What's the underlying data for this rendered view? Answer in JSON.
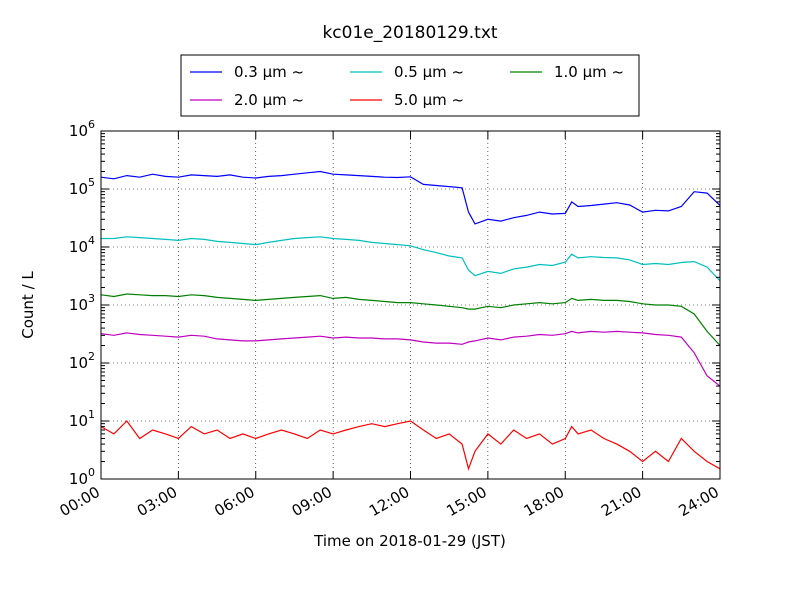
{
  "chart_data": {
    "type": "line",
    "title": "kc01e_20180129.txt",
    "xlabel": "Time on 2018-01-29 (JST)",
    "ylabel": "Count / L",
    "y_scale": "log",
    "ylim": [
      1,
      1000000
    ],
    "xlim": [
      "00:00",
      "24:00"
    ],
    "grid": true,
    "legend_position": "top-center",
    "x_ticks": [
      "00:00",
      "03:00",
      "06:00",
      "09:00",
      "12:00",
      "15:00",
      "18:00",
      "21:00",
      "24:00"
    ],
    "y_ticks": [
      {
        "base": "10",
        "exp": "0"
      },
      {
        "base": "10",
        "exp": "1"
      },
      {
        "base": "10",
        "exp": "2"
      },
      {
        "base": "10",
        "exp": "3"
      },
      {
        "base": "10",
        "exp": "4"
      },
      {
        "base": "10",
        "exp": "5"
      },
      {
        "base": "10",
        "exp": "6"
      }
    ],
    "x_hours": [
      0.0,
      0.5,
      1.0,
      1.5,
      2.0,
      2.5,
      3.0,
      3.5,
      4.0,
      4.5,
      5.0,
      5.5,
      6.0,
      6.5,
      7.0,
      7.5,
      8.0,
      8.5,
      9.0,
      9.5,
      10.0,
      10.5,
      11.0,
      11.5,
      12.0,
      12.5,
      13.0,
      13.5,
      14.0,
      14.25,
      14.5,
      15.0,
      15.5,
      16.0,
      16.5,
      17.0,
      17.5,
      18.0,
      18.25,
      18.5,
      19.0,
      19.5,
      20.0,
      20.5,
      21.0,
      21.5,
      22.0,
      22.5,
      23.0,
      23.5,
      24.0
    ],
    "series": [
      {
        "name": "0.3 μm ~",
        "color": "#0000ff",
        "values": [
          160000,
          150000,
          170000,
          160000,
          180000,
          165000,
          160000,
          175000,
          170000,
          165000,
          175000,
          160000,
          155000,
          165000,
          170000,
          180000,
          190000,
          200000,
          180000,
          175000,
          170000,
          165000,
          160000,
          158000,
          162000,
          120000,
          115000,
          110000,
          105000,
          40000,
          25000,
          30000,
          28000,
          32000,
          35000,
          40000,
          37000,
          38000,
          60000,
          50000,
          52000,
          55000,
          58000,
          53000,
          40000,
          43000,
          42000,
          50000,
          90000,
          85000,
          52000
        ]
      },
      {
        "name": "0.5 μm ~",
        "color": "#00bfbf",
        "values": [
          14000,
          14000,
          15000,
          14500,
          14000,
          13500,
          13000,
          14000,
          13500,
          12500,
          12000,
          11500,
          11000,
          12000,
          13000,
          14000,
          14500,
          15000,
          14000,
          13500,
          13000,
          12000,
          11500,
          11000,
          10500,
          9000,
          8000,
          7000,
          6500,
          4000,
          3200,
          3800,
          3500,
          4200,
          4500,
          5000,
          4800,
          5500,
          7500,
          6500,
          6800,
          6600,
          6500,
          6000,
          5000,
          5200,
          5000,
          5400,
          5600,
          4500,
          2600
        ]
      },
      {
        "name": "1.0 μm ~",
        "color": "#008000",
        "values": [
          1500,
          1400,
          1550,
          1500,
          1450,
          1450,
          1400,
          1500,
          1450,
          1350,
          1300,
          1250,
          1200,
          1250,
          1300,
          1350,
          1400,
          1450,
          1300,
          1350,
          1250,
          1200,
          1150,
          1100,
          1100,
          1050,
          1000,
          950,
          900,
          850,
          850,
          950,
          900,
          1000,
          1050,
          1100,
          1050,
          1100,
          1300,
          1200,
          1250,
          1200,
          1200,
          1150,
          1050,
          1000,
          1000,
          950,
          700,
          350,
          200
        ]
      },
      {
        "name": "2.0 μm ~",
        "color": "#bf00bf",
        "values": [
          320,
          300,
          330,
          310,
          300,
          290,
          280,
          300,
          290,
          260,
          250,
          240,
          240,
          250,
          260,
          270,
          280,
          290,
          270,
          280,
          270,
          270,
          260,
          260,
          250,
          230,
          220,
          220,
          210,
          230,
          240,
          270,
          250,
          280,
          290,
          310,
          300,
          320,
          350,
          330,
          350,
          340,
          350,
          340,
          330,
          310,
          300,
          280,
          150,
          60,
          40
        ]
      },
      {
        "name": "5.0 μm ~",
        "color": "#ff0000",
        "values": [
          8,
          6,
          10,
          5,
          7,
          6,
          5,
          8,
          6,
          7,
          5,
          6,
          5,
          6,
          7,
          6,
          5,
          7,
          6,
          7,
          8,
          9,
          8,
          9,
          10,
          7,
          5,
          6,
          4,
          1.5,
          3,
          6,
          4,
          7,
          5,
          6,
          4,
          5,
          8,
          6,
          7,
          5,
          4,
          3,
          2,
          3,
          2,
          5,
          3,
          2,
          1.5
        ]
      }
    ]
  }
}
